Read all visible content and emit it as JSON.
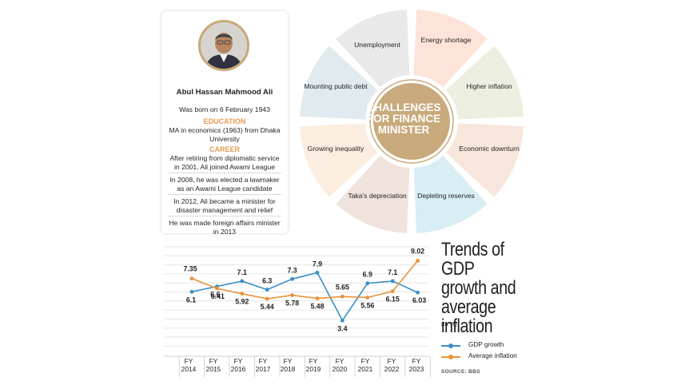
{
  "profile": {
    "name": "Abul Hassan Mahmood Ali",
    "born": "Was born on 6 February 1943",
    "education_heading": "EDUCATION",
    "education": "MA in economics (1963) from Dhaka University",
    "career_heading": "CAREER",
    "career": [
      "After retiring from diplomatic service in 2001, Ali joined Awami League",
      "In 2008, he was elected a lawmaker as an Awami League candidate",
      "In 2012, Ali became a minister for disaster management and relief",
      "He was made foreign affairs minister in 2013"
    ]
  },
  "challenges": {
    "title": "CHALLENGES FOR FINANCE MINISTER",
    "items": [
      "Unemployment",
      "Energy shortage",
      "Higher inflation",
      "Economic downturn",
      "Depleting reserves",
      "Taka's depreciation",
      "Growing inequality",
      "Mounting public debt"
    ],
    "colors": [
      "#e9e9e9",
      "#fde3d8",
      "#ecefdf",
      "#f7e6dc",
      "#d9eef4",
      "#f0e2dc",
      "#fbeee0",
      "#e1ebef"
    ],
    "center_color": "#c9aa7d"
  },
  "chart_data": {
    "type": "line",
    "title": "Trends of GDP growth and average inflation",
    "subtitle": "(In %)",
    "categories": [
      "FY 2014",
      "FY 2015",
      "FY 2016",
      "FY 2017",
      "FY 2018",
      "FY 2019",
      "FY 2020",
      "FY 2021",
      "FY 2022",
      "FY 2023"
    ],
    "series": [
      {
        "name": "GDP growth",
        "color": "#3b8fc6",
        "values": [
          6.1,
          6.6,
          7.1,
          6.3,
          7.3,
          7.9,
          3.4,
          6.9,
          7.1,
          6.03
        ],
        "labels": [
          "6.1",
          "6.6",
          "7.1",
          "6.3",
          "7.3",
          "7.9",
          "3.4",
          "6.9",
          "7.1",
          "6.03"
        ]
      },
      {
        "name": "Average inflation",
        "color": "#e8923a",
        "values": [
          7.35,
          6.41,
          5.92,
          5.44,
          5.78,
          5.48,
          5.65,
          5.56,
          6.15,
          9.02
        ],
        "labels": [
          "7.35",
          "6.41",
          "5.92",
          "5.44",
          "5.78",
          "5.48",
          "5.65",
          "5.56",
          "6.15",
          "9.02"
        ]
      }
    ],
    "source": "SOURCE: BBS"
  }
}
